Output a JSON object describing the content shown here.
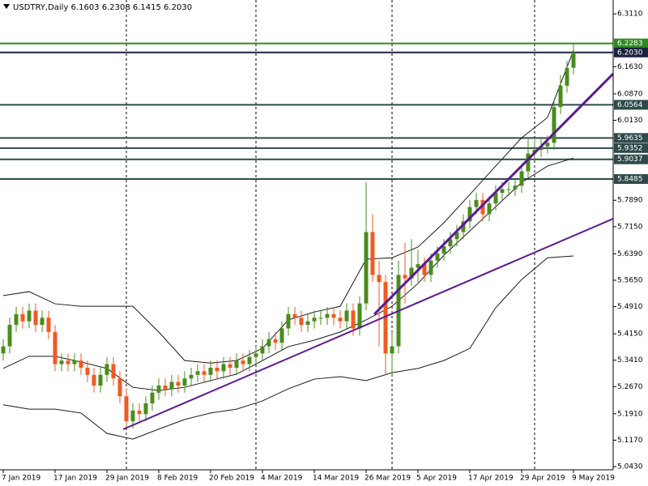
{
  "chart_data": {
    "type": "candlestick",
    "title": "USDTRY,Daily  6.1603 6.2308 6.1415 6.2030",
    "categories": [
      "7 Jan 2019",
      null,
      null,
      null,
      null,
      null,
      null,
      null,
      "17 Jan 2019",
      null,
      null,
      null,
      null,
      null,
      null,
      null,
      "29 Jan 2019",
      null,
      null,
      null,
      null,
      null,
      null,
      null,
      "8 Feb 2019",
      null,
      null,
      null,
      null,
      null,
      null,
      null,
      "20 Feb 2019",
      null,
      null,
      null,
      null,
      null,
      null,
      null,
      "4 Mar 2019",
      null,
      null,
      null,
      null,
      null,
      null,
      null,
      "14 Mar 2019",
      null,
      null,
      null,
      null,
      null,
      null,
      null,
      "26 Mar 2019",
      null,
      null,
      null,
      null,
      null,
      null,
      null,
      "5 Apr 2019",
      null,
      null,
      null,
      null,
      null,
      null,
      null,
      "17 Apr 2019",
      null,
      null,
      null,
      null,
      null,
      null,
      null,
      "29 Apr 2019",
      null,
      null,
      null,
      null,
      null,
      null,
      null,
      "9 May 2019"
    ],
    "open": [
      5.36,
      5.38,
      5.44,
      5.47,
      5.45,
      5.48,
      5.44,
      5.46,
      5.42,
      5.33,
      5.34,
      5.33,
      5.34,
      5.32,
      5.3,
      5.27,
      5.3,
      5.33,
      5.29,
      5.24,
      5.17,
      5.2,
      5.19,
      5.22,
      5.25,
      5.27,
      5.26,
      5.28,
      5.27,
      5.29,
      5.3,
      5.31,
      5.3,
      5.32,
      5.31,
      5.33,
      5.32,
      5.34,
      5.33,
      5.35,
      5.36,
      5.38,
      5.4,
      5.39,
      5.43,
      5.47,
      5.46,
      5.44,
      5.45,
      5.46,
      5.46,
      5.47,
      5.46,
      5.45,
      5.48,
      5.43,
      5.5,
      5.7,
      5.58,
      5.56,
      5.36,
      5.38,
      5.58,
      5.57,
      5.6,
      5.61,
      5.58,
      5.62,
      5.64,
      5.66,
      5.68,
      5.7,
      5.73,
      5.77,
      5.79,
      5.75,
      5.78,
      5.81,
      5.82,
      5.82,
      5.83,
      5.87,
      5.92,
      5.93,
      5.94,
      5.95,
      6.05,
      6.11,
      6.1603
    ],
    "high": [
      5.4,
      5.46,
      5.49,
      5.49,
      5.5,
      5.5,
      5.48,
      5.48,
      5.44,
      5.36,
      5.36,
      5.36,
      5.36,
      5.34,
      5.32,
      5.32,
      5.35,
      5.35,
      5.31,
      5.26,
      5.22,
      5.22,
      5.24,
      5.27,
      5.29,
      5.29,
      5.3,
      5.3,
      5.31,
      5.32,
      5.33,
      5.33,
      5.34,
      5.34,
      5.35,
      5.35,
      5.36,
      5.36,
      5.37,
      5.38,
      5.4,
      5.42,
      5.42,
      5.45,
      5.49,
      5.49,
      5.48,
      5.47,
      5.48,
      5.48,
      5.49,
      5.49,
      5.48,
      5.5,
      5.5,
      5.52,
      5.84,
      5.75,
      5.62,
      5.58,
      5.42,
      5.62,
      5.67,
      5.68,
      5.65,
      5.63,
      5.64,
      5.66,
      5.68,
      5.7,
      5.72,
      5.75,
      5.79,
      5.81,
      5.81,
      5.8,
      5.83,
      5.84,
      5.84,
      5.85,
      5.89,
      5.96,
      5.96,
      5.96,
      5.97,
      6.07,
      6.14,
      6.18,
      6.2308
    ],
    "low": [
      5.34,
      5.36,
      5.42,
      5.43,
      5.43,
      5.42,
      5.42,
      5.4,
      5.31,
      5.31,
      5.31,
      5.31,
      5.3,
      5.28,
      5.25,
      5.25,
      5.28,
      5.27,
      5.22,
      5.15,
      5.15,
      5.17,
      5.17,
      5.2,
      5.23,
      5.24,
      5.24,
      5.25,
      5.25,
      5.27,
      5.28,
      5.28,
      5.28,
      5.29,
      5.29,
      5.3,
      5.3,
      5.31,
      5.31,
      5.33,
      5.34,
      5.36,
      5.37,
      5.37,
      5.41,
      5.44,
      5.42,
      5.42,
      5.43,
      5.44,
      5.44,
      5.44,
      5.43,
      5.43,
      5.41,
      5.41,
      5.48,
      5.56,
      5.38,
      5.3,
      5.3,
      5.36,
      5.5,
      5.55,
      5.56,
      5.56,
      5.56,
      5.6,
      5.62,
      5.64,
      5.66,
      5.68,
      5.71,
      5.75,
      5.73,
      5.73,
      5.76,
      5.79,
      5.8,
      5.8,
      5.81,
      5.85,
      5.9,
      5.91,
      5.92,
      5.93,
      6.03,
      6.09,
      6.1415
    ],
    "close": [
      5.38,
      5.44,
      5.47,
      5.45,
      5.48,
      5.44,
      5.46,
      5.42,
      5.33,
      5.34,
      5.33,
      5.34,
      5.32,
      5.3,
      5.27,
      5.3,
      5.33,
      5.29,
      5.24,
      5.17,
      5.2,
      5.19,
      5.22,
      5.25,
      5.27,
      5.26,
      5.28,
      5.27,
      5.29,
      5.3,
      5.31,
      5.3,
      5.32,
      5.31,
      5.33,
      5.32,
      5.34,
      5.33,
      5.35,
      5.36,
      5.38,
      5.4,
      5.39,
      5.43,
      5.47,
      5.46,
      5.44,
      5.45,
      5.46,
      5.46,
      5.47,
      5.46,
      5.45,
      5.48,
      5.43,
      5.5,
      5.7,
      5.58,
      5.56,
      5.36,
      5.38,
      5.58,
      5.57,
      5.6,
      5.61,
      5.58,
      5.62,
      5.64,
      5.66,
      5.68,
      5.7,
      5.73,
      5.77,
      5.79,
      5.75,
      5.78,
      5.81,
      5.82,
      5.82,
      5.83,
      5.87,
      5.92,
      5.93,
      5.94,
      5.95,
      6.05,
      6.11,
      6.16,
      6.203
    ],
    "colors": {
      "bull": "#4a8c1c",
      "bear": "#f05a22",
      "band": "#1a1a1a"
    },
    "bands": [
      {
        "values": [
          5.522,
          5.533,
          5.499,
          5.492,
          5.492,
          5.492,
          5.42,
          5.34,
          5.333,
          5.34,
          5.374,
          5.454,
          5.476,
          5.492,
          5.624,
          5.628,
          5.658,
          5.726,
          5.805,
          5.885,
          5.964,
          6.021,
          6.209
        ]
      },
      {
        "values": [
          5.318,
          5.352,
          5.352,
          5.336,
          5.318,
          5.265,
          5.256,
          5.265,
          5.284,
          5.302,
          5.34,
          5.379,
          5.397,
          5.42,
          5.454,
          5.492,
          5.556,
          5.635,
          5.703,
          5.771,
          5.839,
          5.885,
          5.907
        ]
      },
      {
        "values": [
          5.216,
          5.204,
          5.204,
          5.193,
          5.136,
          5.12,
          5.148,
          5.175,
          5.193,
          5.204,
          5.227,
          5.261,
          5.288,
          5.295,
          5.284,
          5.306,
          5.318,
          5.34,
          5.374,
          5.488,
          5.567,
          5.628,
          5.633
        ]
      }
    ],
    "levels": [
      6.2283,
      {
        "value": 6.203,
        "label": "6.2030"
      },
      6.0564,
      5.9635,
      5.9352,
      5.9037,
      5.8485
    ],
    "level_colors": [
      "#2e8b1e",
      "#1c2440",
      "#2f4a4a",
      "#2f4a4a",
      "#2f4a4a",
      "#2f4a4a",
      "#2f4a4a"
    ],
    "ylim": [
      5.034,
      6.35
    ],
    "yticks": [
      {
        "value": 6.311,
        "label": "6.3110"
      },
      {
        "value": 6.163,
        "label": "6.1630"
      },
      {
        "value": 6.087,
        "label": "6.0870"
      },
      {
        "value": 6.013,
        "label": "6.0130"
      },
      {
        "value": 5.789,
        "label": "5.7890"
      },
      {
        "value": 5.715,
        "label": "5.7150"
      },
      {
        "value": 5.639,
        "label": "5.6390"
      },
      {
        "value": 5.565,
        "label": "5.5650"
      },
      {
        "value": 5.491,
        "label": "5.4910"
      },
      {
        "value": 5.415,
        "label": "5.4150"
      },
      {
        "value": 5.341,
        "label": "5.3410"
      },
      {
        "value": 5.267,
        "label": "5.2670"
      },
      {
        "value": 5.191,
        "label": "5.1910"
      },
      {
        "value": 5.117,
        "label": "5.1170"
      },
      {
        "value": 5.043,
        "label": "5.0430"
      }
    ]
  }
}
